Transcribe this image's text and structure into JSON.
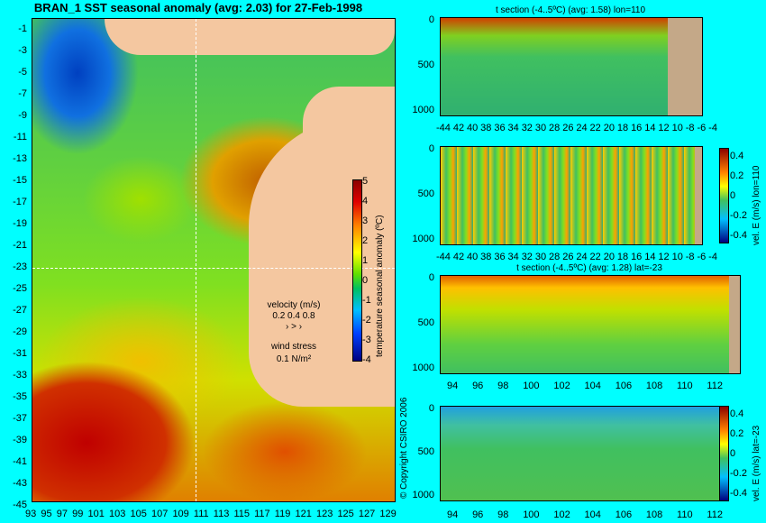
{
  "header": {
    "title": "BRAN_1 SST seasonal anomaly (avg: 2.03) for 27-Feb-1998"
  },
  "map": {
    "lon_ticks": [
      "93",
      "95",
      "97",
      "99",
      "101",
      "103",
      "105",
      "107",
      "109",
      "111",
      "113",
      "115",
      "117",
      "119",
      "121",
      "123",
      "125",
      "127",
      "129"
    ],
    "lat_ticks": [
      "-1",
      "-3",
      "-5",
      "-7",
      "-9",
      "-11",
      "-13",
      "-15",
      "-17",
      "-19",
      "-21",
      "-23",
      "-25",
      "-27",
      "-29",
      "-31",
      "-33",
      "-35",
      "-37",
      "-39",
      "-41",
      "-43",
      "-45"
    ],
    "colorbar": {
      "label": "temperature seasonal anomaly (ºC)",
      "ticks": [
        "5",
        "4",
        "3",
        "2",
        "1",
        "0",
        "-1",
        "-2",
        "-3",
        "-4"
      ],
      "range": [
        -4,
        5
      ]
    },
    "legend": {
      "velocity_label": "velocity (m/s)",
      "velocity_values": "0.2 0.4 0.8",
      "wind_label": "wind stress",
      "wind_value": "0.1 N/m²"
    },
    "copyright": "© Copyright CSIRO 2006"
  },
  "panels": [
    {
      "title": "t section (-4..5ºC) (avg: 1.58) lon=110",
      "x_ticks": [
        "-44",
        "42",
        "40",
        "38",
        "36",
        "34",
        "32",
        "30",
        "28",
        "26",
        "24",
        "22",
        "20",
        "18",
        "16",
        "14",
        "12",
        "10",
        "-8",
        "-6",
        "-4"
      ],
      "y_ticks": [
        "0",
        "500",
        "1000"
      ]
    },
    {
      "title": "",
      "x_ticks": [
        "-44",
        "42",
        "40",
        "38",
        "36",
        "34",
        "32",
        "30",
        "28",
        "26",
        "24",
        "22",
        "20",
        "18",
        "16",
        "14",
        "12",
        "10",
        "-8",
        "-6",
        "-4"
      ],
      "y_ticks": [
        "0",
        "500",
        "1000"
      ],
      "colorbar_label": "vel. E (m/s) lon=110",
      "colorbar_ticks": [
        "0.4",
        "0.2",
        "0",
        "-0.2",
        "-0.4"
      ]
    },
    {
      "title": "t section (-4..5ºC) (avg: 1.28) lat=-23",
      "x_ticks": [
        "94",
        "96",
        "98",
        "100",
        "102",
        "104",
        "106",
        "108",
        "110",
        "112"
      ],
      "y_ticks": [
        "0",
        "500",
        "1000"
      ]
    },
    {
      "title": "",
      "x_ticks": [
        "94",
        "96",
        "98",
        "100",
        "102",
        "104",
        "106",
        "108",
        "110",
        "112"
      ],
      "y_ticks": [
        "0",
        "500",
        "1000"
      ],
      "colorbar_label": "vel. E (m/s) lat=-23",
      "colorbar_ticks": [
        "0.4",
        "0.2",
        "0",
        "-0.2",
        "-0.4"
      ]
    }
  ]
}
